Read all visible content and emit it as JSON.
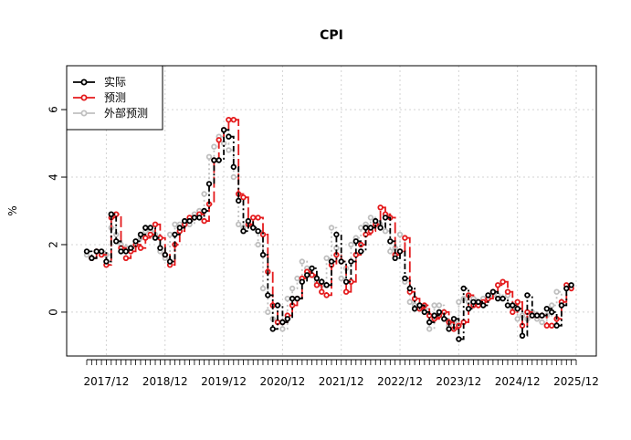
{
  "chart_data": {
    "type": "line",
    "title": "CPI",
    "ylabel": "%",
    "xlabel": "",
    "ylim": [
      -1.3,
      7.3
    ],
    "yticks": [
      0,
      2,
      4,
      6
    ],
    "x_start_month": "2017-08",
    "x_end_month": "2025-12",
    "x_tick_labels": [
      "2017/12",
      "2018/12",
      "2019/12",
      "2020/12",
      "2021/12",
      "2022/12",
      "2023/12",
      "2024/12",
      "2025/12"
    ],
    "x_tick_months": [
      "2017-12",
      "2018-12",
      "2019-12",
      "2020-12",
      "2021-12",
      "2022-12",
      "2023-12",
      "2024-12",
      "2025-12"
    ],
    "grid": true,
    "legend_position": "top-left",
    "series": [
      {
        "name": "实际",
        "color": "#000000",
        "dash": "6 3 2 3",
        "start_month": "2017-08",
        "values": [
          1.8,
          1.6,
          1.8,
          1.8,
          1.5,
          2.9,
          2.1,
          1.8,
          1.8,
          1.9,
          2.1,
          2.3,
          2.5,
          2.5,
          2.2,
          1.9,
          1.7,
          1.5,
          2.3,
          2.5,
          2.7,
          2.7,
          2.8,
          2.8,
          3.0,
          3.8,
          4.5,
          4.5,
          5.4,
          5.2,
          4.3,
          3.3,
          2.4,
          2.7,
          2.5,
          2.4,
          1.7,
          0.5,
          -0.5,
          0.2,
          -0.3,
          -0.2,
          0.4,
          0.4,
          0.9,
          1.1,
          1.3,
          1.0,
          0.9,
          0.8,
          1.5,
          2.3,
          1.5,
          0.9,
          1.5,
          2.1,
          1.8,
          2.5,
          2.5,
          2.7,
          2.5,
          2.8,
          2.1,
          1.6,
          1.8,
          1.0,
          0.7,
          0.1,
          0.2,
          0.0,
          -0.3,
          -0.1,
          0.0,
          -0.2,
          -0.5,
          -0.2,
          -0.8,
          0.7,
          0.1,
          0.3,
          0.3,
          0.2,
          0.5,
          0.6,
          0.4,
          0.4,
          0.2,
          0.2,
          0.1,
          -0.7,
          0.5,
          -0.1,
          -0.1,
          -0.1,
          0.1,
          0.0,
          -0.4,
          0.2,
          0.7,
          0.8
        ]
      },
      {
        "name": "预测",
        "color": "#e41a1c",
        "dash": "12 4",
        "start_month": "2017-09",
        "values": [
          1.6,
          1.8,
          1.7,
          1.4,
          2.8,
          2.9,
          1.9,
          1.6,
          1.8,
          2.0,
          1.9,
          2.2,
          2.3,
          2.6,
          2.2,
          1.7,
          1.4,
          2.0,
          2.4,
          2.6,
          2.8,
          2.8,
          2.9,
          2.7,
          3.2,
          4.5,
          5.1,
          5.4,
          5.7,
          5.7,
          3.5,
          3.4,
          2.6,
          2.8,
          2.8,
          2.3,
          1.2,
          0.2,
          -0.3,
          -0.3,
          -0.1,
          0.2,
          0.4,
          1.0,
          1.2,
          1.1,
          0.8,
          0.6,
          0.5,
          1.4,
          1.7,
          1.5,
          0.6,
          0.9,
          1.7,
          2.0,
          2.3,
          2.4,
          2.6,
          3.1,
          2.9,
          2.8,
          1.7,
          1.8,
          2.2,
          0.6,
          0.4,
          0.1,
          0.2,
          -0.1,
          -0.2,
          -0.1,
          0.0,
          -0.3,
          -0.5,
          -0.4,
          -0.3,
          0.5,
          0.2,
          0.2,
          0.3,
          0.4,
          0.6,
          0.8,
          0.9,
          0.6,
          0.0,
          0.3,
          -0.4,
          0.0,
          -0.1,
          -0.1,
          -0.1,
          -0.4,
          -0.4,
          -0.2,
          0.3,
          0.8,
          0.7
        ]
      },
      {
        "name": "外部预测",
        "color": "#c0c0c0",
        "dash": "2 3",
        "start_month": "2017-08",
        "values": [
          1.7,
          1.6,
          1.8,
          1.8,
          1.7,
          2.5,
          2.3,
          2.0,
          1.9,
          1.8,
          2.0,
          2.2,
          2.4,
          2.4,
          2.3,
          1.8,
          1.6,
          2.3,
          2.6,
          2.6,
          2.7,
          2.6,
          2.9,
          3.0,
          3.5,
          4.6,
          4.9,
          5.2,
          5.0,
          4.8,
          4.0,
          2.6,
          2.5,
          2.6,
          2.5,
          2.0,
          0.7,
          0.0,
          -0.2,
          -0.3,
          -0.5,
          0.4,
          0.7,
          1.0,
          1.5,
          1.3,
          1.1,
          0.9,
          0.8,
          1.6,
          2.5,
          1.9,
          1.0,
          1.3,
          2.0,
          2.2,
          2.5,
          2.6,
          2.8,
          2.7,
          2.6,
          2.4,
          1.8,
          1.9,
          2.3,
          0.9,
          0.3,
          0.2,
          0.2,
          0.1,
          -0.5,
          0.2,
          0.2,
          -0.2,
          -0.4,
          -0.3,
          0.3,
          0.4,
          0.3,
          0.4,
          0.3,
          0.4,
          0.5,
          0.5,
          0.5,
          0.4,
          0.5,
          0.1,
          -0.2,
          -0.1,
          -0.2,
          0.0,
          -0.2,
          -0.3,
          -0.1,
          0.2,
          0.6,
          0.2
        ]
      }
    ]
  }
}
